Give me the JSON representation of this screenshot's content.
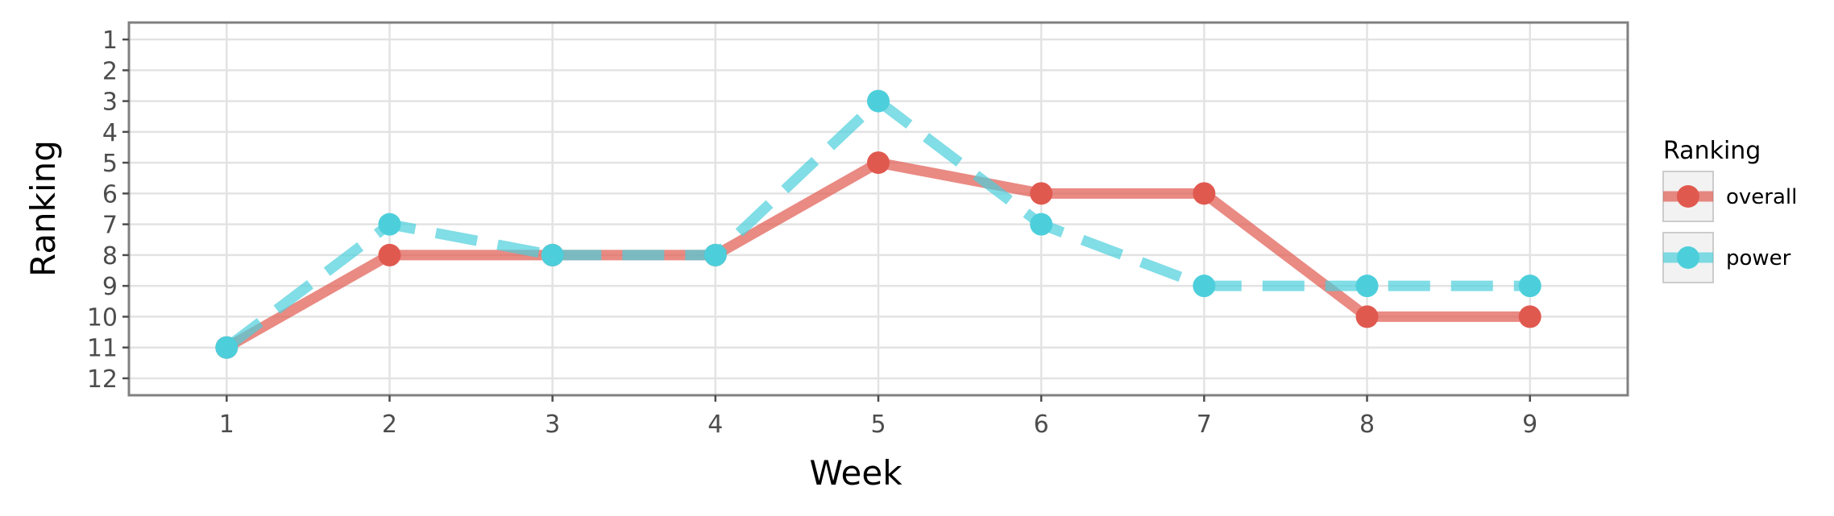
{
  "chart_data": {
    "type": "line",
    "xlabel": "Week",
    "ylabel": "Ranking",
    "x": [
      1,
      2,
      3,
      4,
      5,
      6,
      7,
      8,
      9
    ],
    "xlim": [
      0.4,
      9.6
    ],
    "ylim": [
      12.55,
      0.45
    ],
    "y_reversed": true,
    "x_ticks": [
      "1",
      "2",
      "3",
      "4",
      "5",
      "6",
      "7",
      "8",
      "9"
    ],
    "y_ticks": [
      "1",
      "2",
      "3",
      "4",
      "5",
      "6",
      "7",
      "8",
      "9",
      "10",
      "11",
      "12"
    ],
    "grid": true,
    "legend_title": "Ranking",
    "legend_position": "right",
    "series": [
      {
        "name": "overall",
        "values": [
          11,
          8,
          8,
          8,
          5,
          6,
          6,
          10,
          10
        ],
        "color": "#e0594f",
        "linestyle": "solid"
      },
      {
        "name": "power",
        "values": [
          11,
          7,
          8,
          8,
          3,
          7,
          9,
          9,
          9
        ],
        "color": "#4ccfdb",
        "linestyle": "dashed"
      }
    ]
  }
}
